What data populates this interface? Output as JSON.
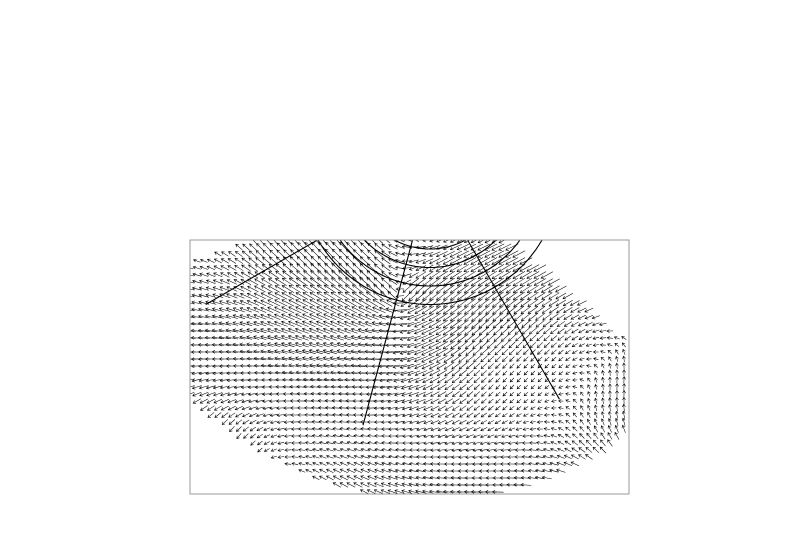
{
  "map": {
    "type": "vector-field",
    "projection": "polar-stereographic",
    "hemisphere": "north",
    "graticule": true,
    "arrow_color": "#000000",
    "frame_color": "#999999",
    "background": "#ffffff",
    "center_longitude_deg": 45,
    "parallels_deg": [
      55,
      60,
      65,
      70,
      75,
      80
    ],
    "meridians_deg": [
      -135,
      -90,
      -45,
      0,
      45,
      90,
      135,
      180
    ]
  }
}
